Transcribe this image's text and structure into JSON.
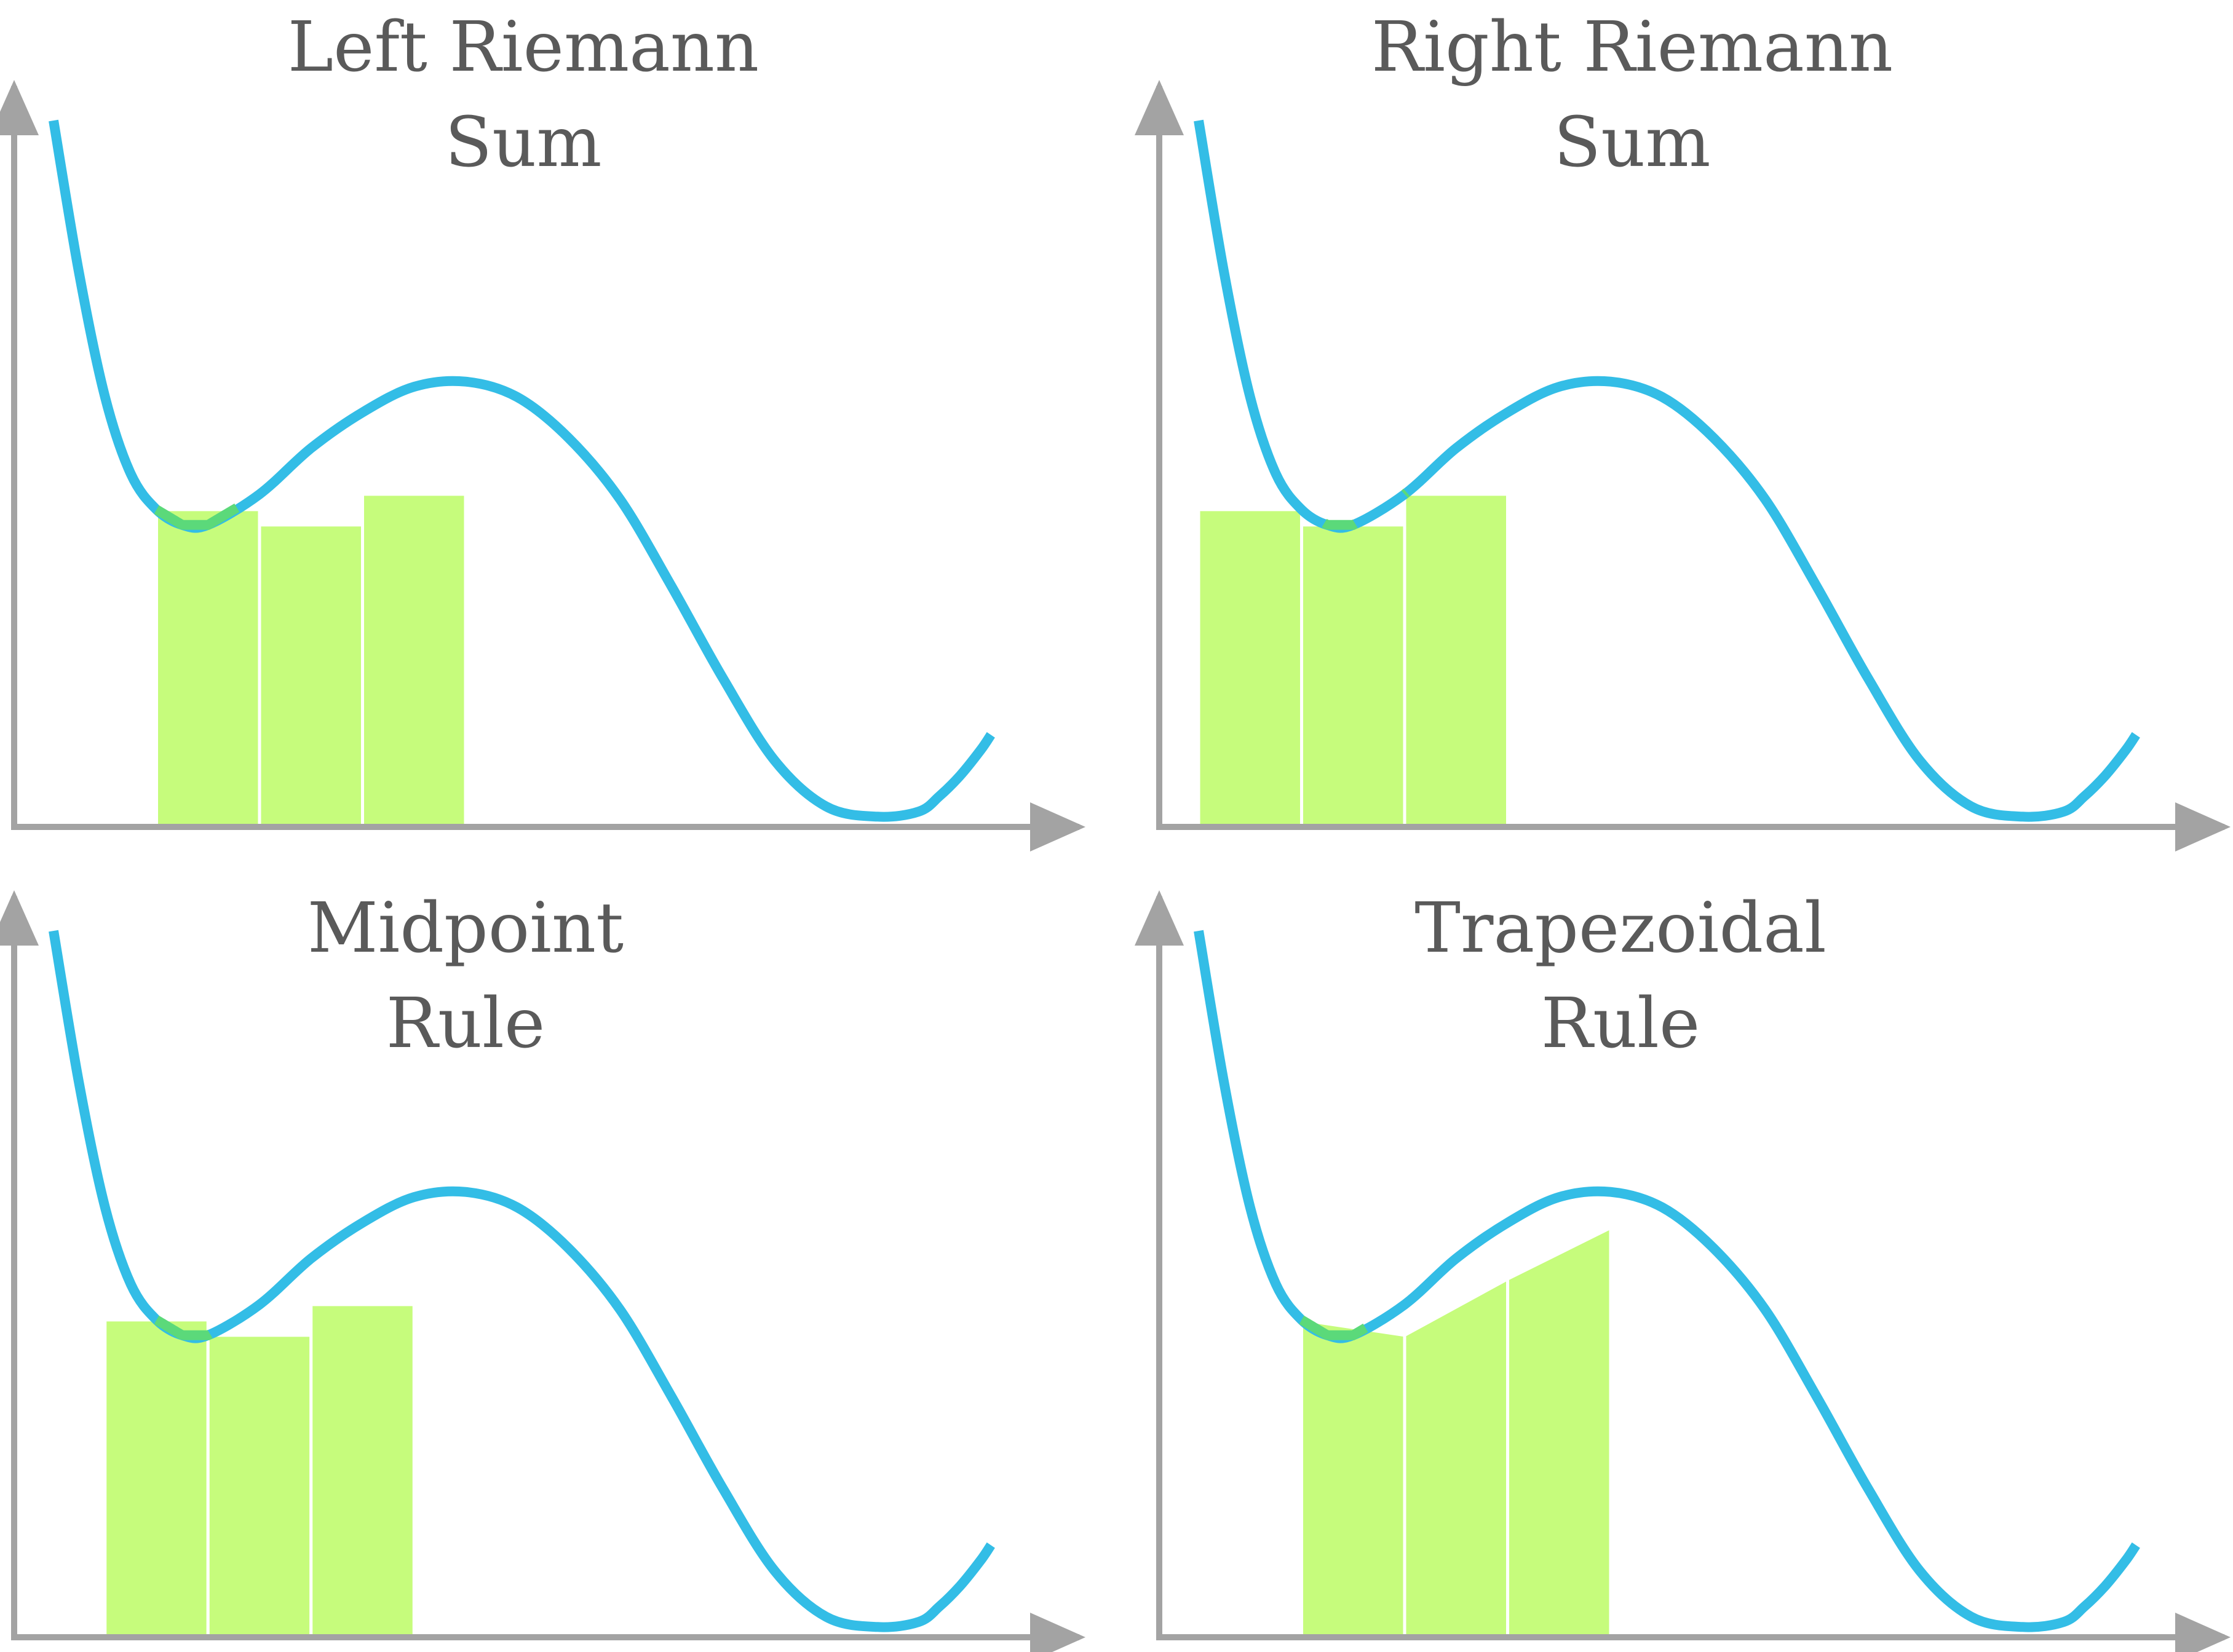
{
  "colors": {
    "axis": "#a3a3a3",
    "curve": "#33bde6",
    "fill": "#c6fc7c",
    "curve_overlap": "#5bd97a",
    "bar_edge": "#ffffff",
    "title_text": "#5a5a5a"
  },
  "curve_function": {
    "description": "Same curve drawn in all four panels, in data units x in [0, 9.1]",
    "samples_x": [
      0.0,
      0.25,
      0.5,
      0.75,
      1.0,
      1.25,
      1.5,
      2.0,
      2.5,
      3.0,
      3.5,
      4.0,
      4.5,
      5.0,
      5.5,
      6.0,
      6.5,
      7.0,
      7.5,
      8.0,
      8.4,
      8.6,
      8.8,
      9.0,
      9.1
    ],
    "samples_y": [
      6.9,
      5.4,
      4.2,
      3.45,
      3.1,
      2.95,
      2.95,
      3.25,
      3.7,
      4.05,
      4.3,
      4.35,
      4.2,
      3.8,
      3.2,
      2.35,
      1.45,
      0.65,
      0.2,
      0.1,
      0.15,
      0.3,
      0.5,
      0.75,
      0.9
    ]
  },
  "panels": [
    {
      "id": "left-riemann",
      "title_line1": "Left Riemann",
      "title_line2": "Sum",
      "method": "left",
      "bars": [
        {
          "x0": 1.0,
          "x1": 2.0,
          "height": 3.1
        },
        {
          "x0": 2.0,
          "x1": 3.0,
          "height": 2.95
        },
        {
          "x0": 3.0,
          "x1": 4.0,
          "height": 3.25
        }
      ]
    },
    {
      "id": "right-riemann",
      "title_line1": "Right Riemann",
      "title_line2": "Sum",
      "method": "right",
      "bars": [
        {
          "x0": 0.0,
          "x1": 1.0,
          "height": 3.1
        },
        {
          "x0": 1.0,
          "x1": 2.0,
          "height": 2.95
        },
        {
          "x0": 2.0,
          "x1": 3.0,
          "height": 3.25
        }
      ]
    },
    {
      "id": "midpoint",
      "title_line1": "Midpoint",
      "title_line2": "Rule",
      "method": "midpoint",
      "bars": [
        {
          "x0": 0.5,
          "x1": 1.5,
          "height": 3.1
        },
        {
          "x0": 1.5,
          "x1": 2.5,
          "height": 2.95
        },
        {
          "x0": 2.5,
          "x1": 3.5,
          "height": 3.25
        }
      ]
    },
    {
      "id": "trapezoidal",
      "title_line1": "Trapezoidal",
      "title_line2": "Rule",
      "method": "trapezoidal",
      "bars": [
        {
          "x0": 1.0,
          "x1": 2.0,
          "y0": 3.1,
          "y1": 2.95
        },
        {
          "x0": 2.0,
          "x1": 3.0,
          "y0": 2.95,
          "y1": 3.5
        },
        {
          "x0": 3.0,
          "x1": 4.0,
          "y0": 3.5,
          "y1": 4.0
        }
      ]
    }
  ]
}
